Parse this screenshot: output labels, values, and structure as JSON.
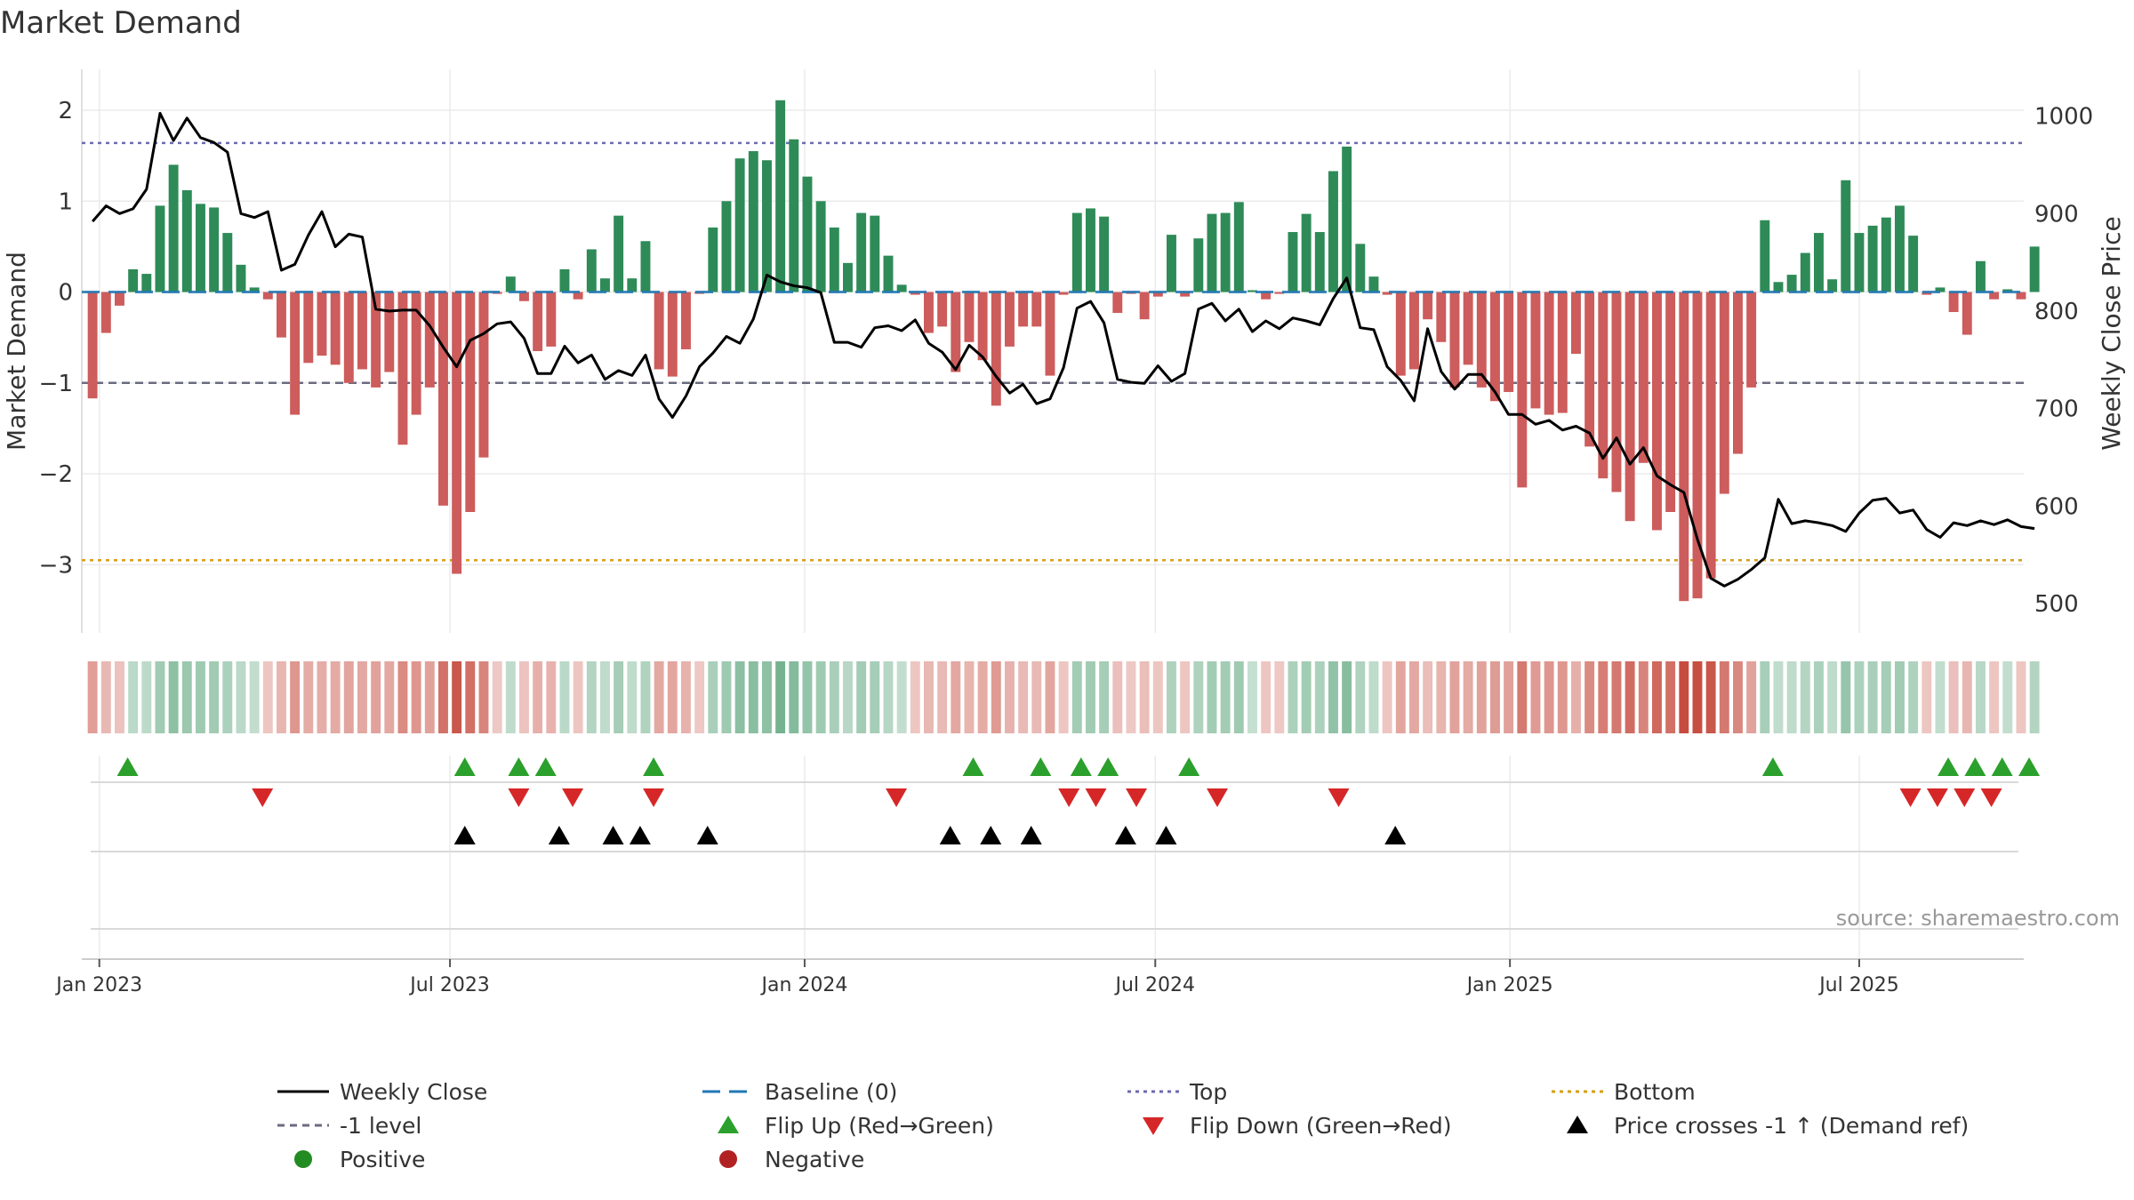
{
  "chart_data": {
    "type": "bar",
    "title": "Market Demand",
    "ylabel": "Market Demand",
    "y2label": "Weekly Close Price",
    "ylim": [
      -3.75,
      2.45
    ],
    "y2lim": [
      470,
      1048
    ],
    "yticks": [
      2,
      1,
      0,
      -1,
      -2,
      -3
    ],
    "y2ticks": [
      1000,
      900,
      800,
      700,
      600,
      500
    ],
    "ytick_labels": [
      "2",
      "1",
      "0",
      "−1",
      "−2",
      "−3"
    ],
    "y2tick_labels": [
      "1000",
      "900",
      "800",
      "700",
      "600",
      "500"
    ],
    "x_start_week": -0.8,
    "x_end_week": 143.2,
    "xticks": [
      {
        "label": "Jan 2023",
        "week": 0.5
      },
      {
        "label": "Jul 2023",
        "week": 26.5
      },
      {
        "label": "Jan 2024",
        "week": 52.8
      },
      {
        "label": "Jul 2024",
        "week": 78.8
      },
      {
        "label": "Jan 2025",
        "week": 105.1
      },
      {
        "label": "Jul 2025",
        "week": 131.0
      }
    ],
    "reference_lines": [
      {
        "name": "Top",
        "value": 1.64,
        "color": "#6c6cb0",
        "style": "dot"
      },
      {
        "name": "-1 level",
        "value": -1.0,
        "color": "#6b6b80",
        "style": "dash"
      },
      {
        "name": "Bottom",
        "value": -2.95,
        "color": "#d4a017",
        "style": "dot"
      },
      {
        "name": "Baseline (0)",
        "value": 0,
        "color": "#1f77b4",
        "style": "dashlong"
      }
    ],
    "colors": {
      "positive_bar": "#2e8b57",
      "negative_bar": "#cd5c5c",
      "price_line": "#000000",
      "flip_up": "#2ca02c",
      "flip_down": "#d62728",
      "cross": "#000000",
      "positive_dot": "#228b22",
      "negative_dot": "#b22222"
    },
    "demand_values": [
      -1.17,
      -0.45,
      -0.15,
      0.25,
      0.2,
      0.95,
      1.4,
      1.12,
      0.97,
      0.93,
      0.65,
      0.3,
      0.05,
      -0.08,
      -0.5,
      -1.35,
      -0.78,
      -0.7,
      -0.8,
      -1.0,
      -0.85,
      -1.05,
      -0.88,
      -1.68,
      -1.35,
      -1.05,
      -2.35,
      -3.1,
      -2.42,
      -1.82,
      -0.02,
      0.17,
      -0.1,
      -0.65,
      -0.6,
      0.25,
      -0.08,
      0.47,
      0.15,
      0.84,
      0.15,
      0.56,
      -0.85,
      -0.93,
      -0.63,
      -0.02,
      0.71,
      1.0,
      1.47,
      1.55,
      1.45,
      2.11,
      1.68,
      1.27,
      1.0,
      0.71,
      0.32,
      0.87,
      0.84,
      0.4,
      0.08,
      -0.03,
      -0.45,
      -0.38,
      -0.88,
      -0.55,
      -0.75,
      -1.25,
      -0.6,
      -0.38,
      -0.38,
      -0.92,
      -0.03,
      0.87,
      0.92,
      0.83,
      -0.23,
      -0.02,
      -0.3,
      -0.05,
      0.63,
      -0.05,
      0.59,
      0.86,
      0.87,
      0.99,
      0.02,
      -0.08,
      -0.02,
      0.66,
      0.86,
      0.66,
      1.33,
      1.6,
      0.53,
      0.17,
      -0.03,
      -0.92,
      -0.85,
      -0.3,
      -0.55,
      -1.05,
      -0.8,
      -1.05,
      -1.2,
      -1.1,
      -2.15,
      -1.28,
      -1.35,
      -1.33,
      -0.68,
      -1.7,
      -2.05,
      -2.2,
      -2.52,
      -1.88,
      -2.62,
      -2.42,
      -3.4,
      -3.37,
      -3.15,
      -2.22,
      -1.78,
      -1.05,
      0.79,
      0.11,
      0.19,
      0.43,
      0.65,
      0.14,
      1.23,
      0.65,
      0.73,
      0.82,
      0.95,
      0.62,
      -0.03,
      0.05,
      -0.22,
      -0.47,
      0.34,
      -0.08,
      0.03,
      -0.08,
      0.5
    ],
    "weekly_close": [
      892,
      908,
      900,
      905,
      925,
      1003,
      975,
      998,
      978,
      973,
      963,
      900,
      896,
      902,
      842,
      848,
      878,
      902,
      866,
      879,
      876,
      802,
      800,
      801,
      801,
      785,
      763,
      743,
      770,
      777,
      787,
      789,
      772,
      736,
      736,
      764,
      747,
      755,
      730,
      739,
      734,
      755,
      710,
      691,
      713,
      743,
      757,
      774,
      767,
      792,
      837,
      830,
      826,
      824,
      819,
      768,
      768,
      763,
      783,
      785,
      780,
      791,
      767,
      758,
      740,
      765,
      753,
      733,
      716,
      725,
      705,
      710,
      742,
      803,
      810,
      788,
      730,
      727,
      726,
      744,
      728,
      736,
      802,
      808,
      790,
      802,
      779,
      790,
      782,
      793,
      790,
      786,
      813,
      834,
      783,
      781,
      743,
      729,
      708,
      782,
      738,
      720,
      735,
      735,
      717,
      694,
      694,
      684,
      688,
      678,
      682,
      675,
      649,
      670,
      643,
      660,
      631,
      622,
      614,
      566,
      526,
      518,
      525,
      535,
      547,
      607,
      582,
      585,
      583,
      580,
      574,
      593,
      606,
      608,
      593,
      596,
      576,
      568,
      583,
      580,
      585,
      581,
      586,
      579,
      577
    ],
    "flip_up_weeks": [
      2.6,
      27.6,
      31.6,
      33.6,
      41.6,
      65.3,
      70.3,
      73.3,
      75.3,
      81.3,
      124.6,
      137.6,
      139.6,
      141.6,
      143.6
    ],
    "flip_down_weeks": [
      12.6,
      31.6,
      35.6,
      41.6,
      59.6,
      72.4,
      74.4,
      77.4,
      83.4,
      92.4,
      134.8,
      136.8,
      138.8,
      140.8
    ],
    "cross_up_weeks": [
      27.6,
      34.6,
      38.6,
      40.6,
      45.6,
      63.6,
      66.6,
      69.6,
      76.6,
      79.6,
      96.6
    ],
    "source_text": "source: sharemaestro.com",
    "legend": [
      {
        "label": "Weekly Close",
        "kind": "line",
        "color": "#000000"
      },
      {
        "label": "Baseline (0)",
        "kind": "dashlong",
        "color": "#1f77b4"
      },
      {
        "label": "Top",
        "kind": "dot",
        "color": "#6c6cb0"
      },
      {
        "label": "Bottom",
        "kind": "dot",
        "color": "#d4a017"
      },
      {
        "label": "-1 level",
        "kind": "dash",
        "color": "#6b6b80"
      },
      {
        "label": "Flip Up (Red→Green)",
        "kind": "tri-up",
        "color": "#2ca02c"
      },
      {
        "label": "Flip Down (Green→Red)",
        "kind": "tri-down",
        "color": "#d62728"
      },
      {
        "label": "Price crosses -1 ↑ (Demand ref)",
        "kind": "tri-up",
        "color": "#000000"
      },
      {
        "label": "Positive",
        "kind": "circle",
        "color": "#228b22"
      },
      {
        "label": "Negative",
        "kind": "circle",
        "color": "#b22222"
      }
    ]
  }
}
